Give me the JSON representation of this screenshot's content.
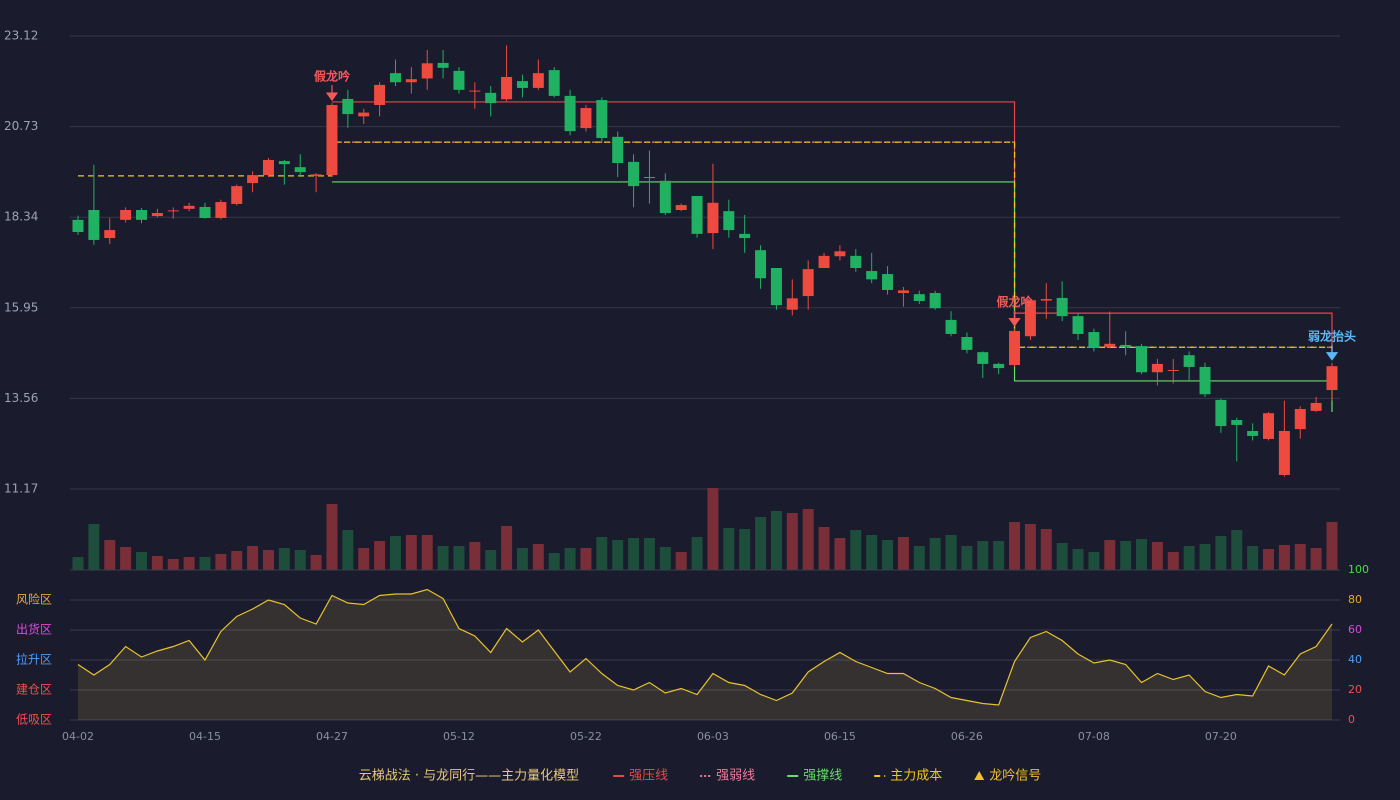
{
  "chart_data": [
    {
      "type": "candlestick",
      "title": "云梯战法 · 与龙同行——主力量化模型",
      "ylim": [
        11.17,
        23.12
      ],
      "yticks": [
        11.17,
        13.56,
        15.95,
        18.34,
        20.73,
        23.12
      ],
      "grid": true,
      "up_color": "#ee4a3f",
      "down_color": "#21b163",
      "open": [
        18.27,
        18.53,
        17.79,
        18.27,
        18.53,
        18.37,
        18.5,
        18.56,
        18.61,
        18.32,
        18.69,
        19.24,
        19.45,
        19.82,
        19.66,
        19.43,
        19.45,
        21.46,
        21.0,
        21.3,
        22.14,
        21.9,
        22.0,
        22.41,
        22.2,
        21.66,
        21.62,
        21.45,
        21.93,
        21.75,
        22.22,
        21.54,
        20.69,
        21.43,
        20.46,
        19.8,
        19.4,
        19.3,
        18.53,
        18.9,
        17.92,
        18.5,
        17.9,
        17.47,
        17.0,
        15.9,
        16.26,
        17.0,
        17.31,
        17.32,
        16.92,
        16.84,
        16.34,
        16.31,
        16.34,
        15.63,
        15.18,
        14.78,
        14.47,
        14.44,
        15.2,
        16.14,
        16.21,
        15.73,
        15.31,
        14.92,
        14.97,
        14.94,
        14.25,
        14.3,
        14.7,
        14.39,
        13.52,
        12.99,
        12.7,
        12.49,
        11.54,
        12.75,
        13.23,
        13.78
      ],
      "high": [
        18.38,
        19.72,
        18.32,
        18.6,
        18.58,
        18.56,
        18.6,
        18.72,
        18.72,
        18.8,
        19.2,
        19.55,
        19.9,
        19.85,
        20.0,
        19.5,
        21.35,
        21.7,
        21.2,
        21.9,
        22.5,
        22.3,
        22.75,
        22.75,
        22.3,
        21.9,
        21.8,
        22.87,
        22.1,
        22.5,
        22.3,
        21.7,
        21.3,
        21.5,
        20.6,
        20.0,
        20.1,
        19.5,
        18.7,
        18.9,
        19.75,
        18.8,
        18.4,
        17.6,
        17.0,
        16.7,
        17.2,
        17.4,
        17.6,
        17.5,
        17.4,
        17.05,
        16.5,
        16.4,
        16.4,
        15.86,
        15.3,
        14.8,
        14.5,
        15.4,
        16.18,
        16.6,
        16.65,
        15.8,
        15.4,
        15.85,
        15.33,
        15.0,
        14.6,
        14.6,
        14.8,
        14.5,
        13.55,
        13.05,
        12.9,
        13.2,
        13.5,
        13.35,
        13.6,
        14.5
      ],
      "low": [
        17.87,
        17.61,
        17.63,
        18.2,
        18.18,
        18.34,
        18.3,
        18.5,
        18.3,
        18.28,
        18.65,
        19.0,
        19.4,
        19.2,
        19.4,
        19.0,
        19.4,
        20.7,
        20.8,
        21.0,
        21.8,
        21.6,
        21.7,
        22.0,
        21.6,
        21.2,
        21.0,
        21.4,
        21.5,
        21.7,
        21.5,
        20.5,
        20.6,
        20.3,
        19.4,
        18.6,
        18.7,
        18.4,
        18.5,
        17.8,
        17.5,
        17.8,
        17.4,
        16.45,
        15.9,
        15.75,
        15.9,
        17.0,
        17.2,
        16.9,
        16.6,
        16.3,
        15.98,
        16.05,
        15.9,
        15.2,
        14.75,
        14.1,
        14.2,
        14.4,
        15.1,
        15.66,
        15.6,
        15.1,
        14.8,
        14.9,
        14.7,
        14.2,
        13.9,
        13.95,
        14.0,
        13.6,
        12.65,
        11.9,
        12.45,
        12.45,
        11.5,
        12.5,
        13.2,
        13.5
      ],
      "close": [
        17.95,
        17.74,
        18.0,
        18.53,
        18.27,
        18.45,
        18.52,
        18.64,
        18.32,
        18.74,
        19.16,
        19.45,
        19.85,
        19.74,
        19.53,
        19.47,
        21.3,
        21.06,
        21.1,
        21.83,
        21.9,
        21.98,
        22.4,
        22.28,
        21.7,
        21.68,
        21.35,
        22.04,
        21.75,
        22.14,
        21.54,
        20.61,
        21.22,
        20.43,
        19.77,
        19.16,
        19.38,
        18.45,
        18.66,
        17.9,
        18.72,
        18.0,
        17.79,
        16.73,
        16.02,
        16.2,
        16.97,
        17.32,
        17.44,
        17.0,
        16.7,
        16.42,
        16.41,
        16.13,
        15.94,
        15.26,
        14.84,
        14.47,
        14.36,
        15.34,
        16.15,
        16.18,
        15.73,
        15.26,
        14.89,
        15.0,
        14.92,
        14.25,
        14.47,
        14.31,
        14.39,
        13.67,
        12.83,
        12.86,
        12.57,
        13.17,
        12.7,
        13.28,
        13.44,
        14.41
      ],
      "series": [
        {
          "name": "强压线",
          "color": "#e8474a",
          "dash": "solid",
          "values": [
            null,
            null,
            null,
            null,
            null,
            null,
            null,
            null,
            null,
            null,
            null,
            null,
            null,
            null,
            null,
            null,
            21.38,
            21.38,
            21.38,
            21.38,
            21.38,
            21.38,
            21.38,
            21.38,
            21.38,
            21.38,
            21.38,
            21.38,
            21.38,
            21.38,
            21.38,
            21.38,
            21.38,
            21.38,
            21.38,
            21.38,
            21.38,
            21.38,
            21.38,
            21.38,
            21.38,
            21.38,
            21.38,
            21.38,
            21.38,
            21.38,
            21.38,
            21.38,
            21.38,
            21.38,
            21.38,
            21.38,
            21.38,
            21.38,
            21.38,
            21.38,
            21.38,
            21.38,
            21.38,
            15.81,
            15.81,
            15.81,
            15.81,
            15.81,
            15.81,
            15.81,
            15.81,
            15.81,
            15.81,
            15.81,
            15.81,
            15.81,
            15.81,
            15.81,
            15.81,
            15.81,
            15.81,
            15.81,
            15.81,
            14.81
          ]
        },
        {
          "name": "强弱线",
          "color": "#f07a9a",
          "dash": "dotted",
          "values": [
            null,
            null,
            null,
            null,
            null,
            null,
            null,
            null,
            null,
            null,
            null,
            null,
            null,
            null,
            null,
            null,
            20.32,
            20.32,
            20.32,
            20.32,
            20.32,
            20.32,
            20.32,
            20.32,
            20.32,
            20.32,
            20.32,
            20.32,
            20.32,
            20.32,
            20.32,
            20.32,
            20.32,
            20.32,
            20.32,
            20.32,
            20.32,
            20.32,
            20.32,
            20.32,
            20.32,
            20.32,
            20.32,
            20.32,
            20.32,
            20.32,
            20.32,
            20.32,
            20.32,
            20.32,
            20.32,
            20.32,
            20.32,
            20.32,
            20.32,
            20.32,
            20.32,
            20.32,
            20.32,
            14.91,
            14.91,
            14.91,
            14.91,
            14.91,
            14.91,
            14.91,
            14.91,
            14.91,
            14.91,
            14.91,
            14.91,
            14.91,
            14.91,
            14.91,
            14.91,
            14.91,
            14.91,
            14.91,
            14.91,
            14.62
          ]
        },
        {
          "name": "强撑线",
          "color": "#66dd66",
          "dash": "solid",
          "values": [
            null,
            null,
            null,
            null,
            null,
            null,
            null,
            null,
            null,
            null,
            null,
            null,
            null,
            null,
            null,
            null,
            19.27,
            19.27,
            19.27,
            19.27,
            19.27,
            19.27,
            19.27,
            19.27,
            19.27,
            19.27,
            19.27,
            19.27,
            19.27,
            19.27,
            19.27,
            19.27,
            19.27,
            19.27,
            19.27,
            19.27,
            19.27,
            19.27,
            19.27,
            19.27,
            19.27,
            19.27,
            19.27,
            19.27,
            19.27,
            19.27,
            19.27,
            19.27,
            19.27,
            19.27,
            19.27,
            19.27,
            19.27,
            19.27,
            19.27,
            19.27,
            19.27,
            19.27,
            19.27,
            14.02,
            14.02,
            14.02,
            14.02,
            14.02,
            14.02,
            14.02,
            14.02,
            14.02,
            14.02,
            14.02,
            14.02,
            14.02,
            14.02,
            14.02,
            14.02,
            14.02,
            14.02,
            14.02,
            14.02,
            13.2
          ]
        },
        {
          "name": "主力成本",
          "color": "#f5c518",
          "dash": "dashed",
          "values": [
            19.43,
            19.43,
            19.43,
            19.43,
            19.43,
            19.43,
            19.43,
            19.43,
            19.43,
            19.43,
            19.43,
            19.43,
            19.43,
            19.43,
            19.43,
            19.43,
            20.32,
            20.32,
            20.32,
            20.32,
            20.32,
            20.32,
            20.32,
            20.32,
            20.32,
            20.32,
            20.32,
            20.32,
            20.32,
            20.32,
            20.32,
            20.32,
            20.32,
            20.32,
            20.32,
            20.32,
            20.32,
            20.32,
            20.32,
            20.32,
            20.32,
            20.32,
            20.32,
            20.32,
            20.32,
            20.32,
            20.32,
            20.32,
            20.32,
            20.32,
            20.32,
            20.32,
            20.32,
            20.32,
            20.32,
            20.32,
            20.32,
            20.32,
            20.32,
            14.91,
            14.91,
            14.91,
            14.91,
            14.91,
            14.91,
            14.91,
            14.91,
            14.91,
            14.91,
            14.91,
            14.91,
            14.91,
            14.91,
            14.91,
            14.91,
            14.91,
            14.91,
            14.91,
            14.91,
            14.62
          ]
        }
      ],
      "signal_name": "龙吟信号",
      "signal_color": "#f0c030",
      "signals": [
        null,
        null,
        null,
        null,
        null,
        null,
        null,
        null,
        null,
        null,
        null,
        null,
        null,
        null,
        null,
        null,
        {
          "label": "假龙吟",
          "color": "#f25a5a"
        },
        null,
        null,
        null,
        null,
        null,
        null,
        null,
        null,
        null,
        null,
        null,
        null,
        null,
        null,
        null,
        null,
        null,
        null,
        null,
        null,
        null,
        null,
        null,
        null,
        null,
        null,
        null,
        null,
        null,
        null,
        null,
        null,
        null,
        null,
        null,
        null,
        null,
        null,
        null,
        null,
        null,
        null,
        {
          "label": "假龙吟",
          "color": "#f25a5a"
        },
        null,
        null,
        null,
        null,
        null,
        null,
        null,
        null,
        null,
        null,
        null,
        null,
        null,
        null,
        null,
        null,
        null,
        null,
        null,
        {
          "label": "弱龙抬头",
          "color": "#5ab8f5"
        }
      ]
    },
    {
      "type": "bar",
      "up_color": "#7a2e37",
      "down_color": "#1d4d3b",
      "values": [
        13,
        46,
        30,
        23,
        18,
        14,
        11,
        13,
        13,
        16,
        19,
        24,
        20,
        22,
        20,
        15,
        66,
        40,
        22,
        29,
        34,
        35,
        35,
        24,
        24,
        28,
        20,
        44,
        22,
        26,
        17,
        22,
        22,
        33,
        30,
        32,
        32,
        23,
        18,
        33,
        82,
        42,
        41,
        53,
        59,
        57,
        61,
        43,
        32,
        40,
        35,
        30,
        33,
        24,
        32,
        35,
        24,
        29,
        29,
        48,
        46,
        41,
        27,
        21,
        18,
        30,
        29,
        31,
        28,
        18,
        24,
        26,
        34,
        40,
        24,
        21,
        25,
        26,
        22,
        48
      ]
    },
    {
      "type": "line",
      "color": "#e8c22e",
      "fill": "rgba(190,160,70,0.17)",
      "categories": [
        "04-02",
        null,
        null,
        null,
        null,
        null,
        null,
        null,
        "04-15",
        null,
        null,
        null,
        null,
        null,
        null,
        null,
        "04-27",
        null,
        null,
        null,
        null,
        null,
        null,
        null,
        "05-12",
        null,
        null,
        null,
        null,
        null,
        null,
        null,
        "05-22",
        null,
        null,
        null,
        null,
        null,
        null,
        null,
        "06-03",
        null,
        null,
        null,
        null,
        null,
        null,
        null,
        "06-15",
        null,
        null,
        null,
        null,
        null,
        null,
        null,
        "06-26",
        null,
        null,
        null,
        null,
        null,
        null,
        null,
        "07-08",
        null,
        null,
        null,
        null,
        null,
        null,
        null,
        "07-20",
        null,
        null,
        null,
        null,
        null,
        null,
        null
      ],
      "values": [
        37,
        30,
        37,
        49,
        42,
        46,
        49,
        53,
        40,
        59,
        69,
        74,
        80,
        77,
        68,
        64,
        83,
        78,
        77,
        83,
        84,
        84,
        87,
        81,
        61,
        56,
        45,
        61,
        52,
        60,
        46,
        32,
        41,
        31,
        23,
        20,
        25,
        18,
        21,
        17,
        31,
        25,
        23,
        17,
        13,
        18,
        32,
        39,
        45,
        39,
        35,
        31,
        31,
        25,
        21,
        15,
        13,
        11,
        10,
        39,
        55,
        59,
        53,
        44,
        38,
        40,
        37,
        25,
        31,
        27,
        30,
        19,
        15,
        17,
        16,
        36,
        30,
        44,
        49,
        64
      ],
      "ylim": [
        0,
        100
      ],
      "yticks": [
        0,
        20,
        40,
        60,
        80,
        100
      ],
      "grid": true,
      "ytick_colors": [
        "#f05050",
        "#f05050",
        "#4aa0ff",
        "#d94ad9",
        "#e8a33c",
        "#4cdb4c"
      ],
      "zones": [
        {
          "value": 80,
          "label": "风险区",
          "color": "#e9a83e"
        },
        {
          "value": 60,
          "label": "出货区",
          "color": "#e04ae0"
        },
        {
          "value": 40,
          "label": "拉升区",
          "color": "#4a9eff"
        },
        {
          "value": 20,
          "label": "建仓区",
          "color": "#f05050"
        },
        {
          "value": 0,
          "label": "低吸区",
          "color": "#f05050"
        }
      ]
    }
  ]
}
